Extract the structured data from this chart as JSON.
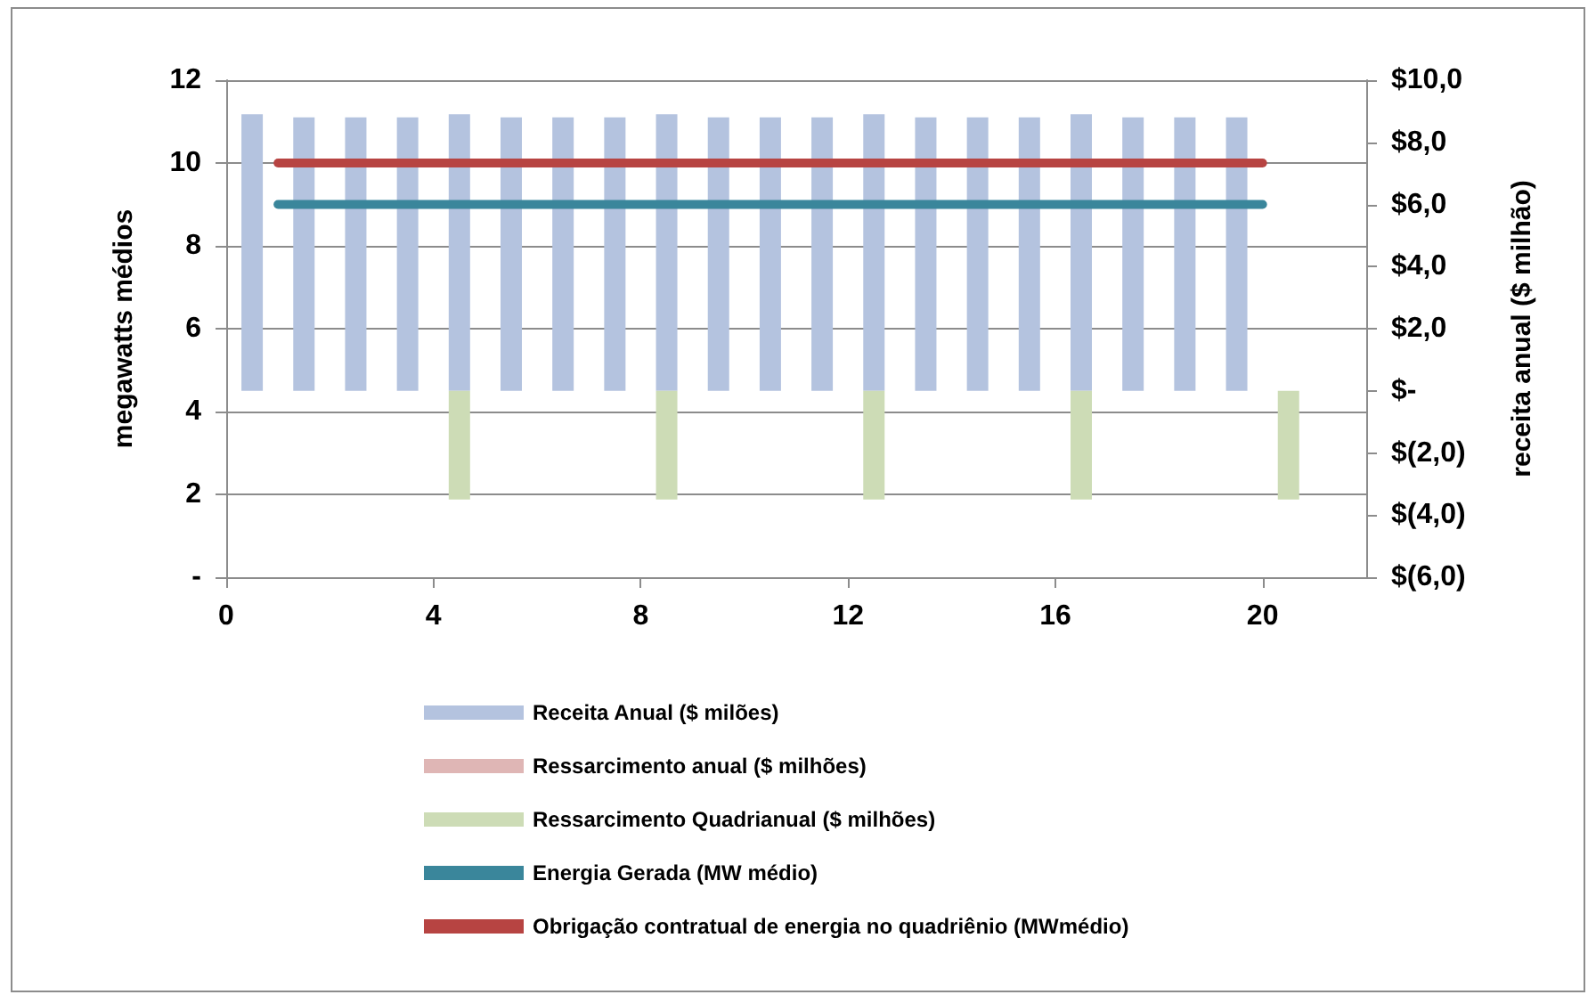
{
  "chart_data": {
    "type": "bar",
    "ylabel": "megawatts médios",
    "y2label": "receita anual ($ milhão)",
    "xlim": [
      0,
      22
    ],
    "xticks": [
      0,
      4,
      8,
      12,
      16,
      20
    ],
    "ylim": [
      0,
      12
    ],
    "yticks": [
      {
        "value": 0,
        "label": "-"
      },
      2,
      4,
      6,
      8,
      10,
      12
    ],
    "y2lim": [
      -6,
      10
    ],
    "y2ticks": [
      {
        "value": -6,
        "label": "$(6,0)"
      },
      {
        "value": -4,
        "label": "$(4,0)"
      },
      {
        "value": -2,
        "label": "$(2,0)"
      },
      {
        "value": 0,
        "label": "$-"
      },
      {
        "value": 2,
        "label": "$2,0"
      },
      {
        "value": 4,
        "label": "$4,0"
      },
      {
        "value": 6,
        "label": "$6,0"
      },
      {
        "value": 8,
        "label": "$8,0"
      },
      {
        "value": 10,
        "label": "$10,0"
      }
    ],
    "grid": "y",
    "legend": "bottom",
    "series": [
      {
        "name": "Receita Anual ($ milões)",
        "axis": "y2",
        "color": "#b4c3df",
        "x": [
          0.5,
          1.5,
          2.5,
          3.5,
          4.5,
          5.5,
          6.5,
          7.5,
          8.5,
          9.5,
          10.5,
          11.5,
          12.5,
          13.5,
          14.5,
          15.5,
          16.5,
          17.5,
          18.5,
          19.5
        ],
        "values": [
          8.9,
          8.8,
          8.8,
          8.8,
          8.9,
          8.8,
          8.8,
          8.8,
          8.9,
          8.8,
          8.8,
          8.8,
          8.9,
          8.8,
          8.8,
          8.8,
          8.9,
          8.8,
          8.8,
          8.8
        ]
      },
      {
        "name": "Ressarcimento anual ($ milhões)",
        "axis": "y2",
        "color": "#dfb6b5"
      },
      {
        "name": "Ressarcimento Quadrianual ($ milhões)",
        "axis": "y2",
        "color": "#cddcb6",
        "x": [
          4.5,
          8.5,
          12.5,
          16.5,
          20.5
        ],
        "values": [
          -3.5,
          -3.5,
          -3.5,
          -3.5,
          -3.5
        ]
      },
      {
        "name": "Energia Gerada (MW médio)",
        "type": "line",
        "color": "#3a869b",
        "x": [
          1,
          20
        ],
        "values": [
          9,
          9
        ]
      },
      {
        "name": "Obrigação contratual de energia no quadriênio (MWmédio)",
        "type": "line",
        "color": "#b74442",
        "x": [
          1,
          20
        ],
        "values": [
          10,
          10
        ]
      }
    ]
  }
}
